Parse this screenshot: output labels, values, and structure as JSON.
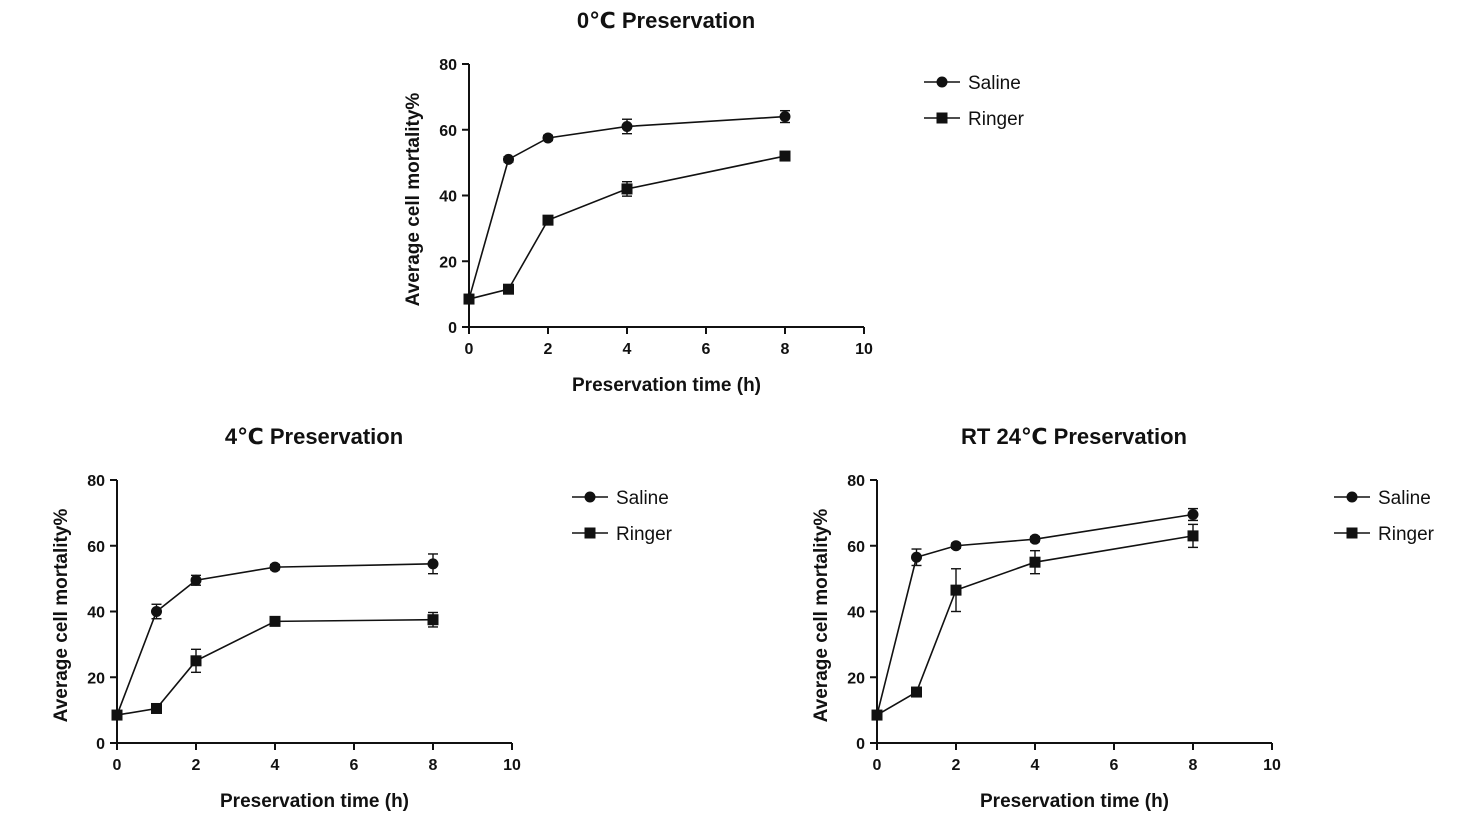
{
  "chart_data": [
    {
      "type": "line",
      "title": "0℃ Preservation",
      "xlabel": "Preservation time (h)",
      "ylabel": "Average cell mortality%",
      "xlim": [
        0,
        10
      ],
      "ylim": [
        0,
        80
      ],
      "xticks": [
        0,
        2,
        4,
        6,
        8,
        10
      ],
      "yticks": [
        0,
        20,
        40,
        60,
        80
      ],
      "legend_position": "right",
      "series": [
        {
          "name": "Saline",
          "marker": "circle",
          "x": [
            0,
            1,
            2,
            4,
            8
          ],
          "values": [
            8.5,
            51,
            57.5,
            61,
            64
          ],
          "errors": [
            0.6,
            0.8,
            0.8,
            2.2,
            1.8
          ]
        },
        {
          "name": "Ringer",
          "marker": "square",
          "x": [
            0,
            1,
            2,
            4,
            8
          ],
          "values": [
            8.5,
            11.5,
            32.5,
            42,
            52
          ],
          "errors": [
            0.6,
            0.8,
            1.0,
            2.2,
            1.0
          ]
        }
      ]
    },
    {
      "type": "line",
      "title": "4℃ Preservation",
      "xlabel": "Preservation time (h)",
      "ylabel": "Average cell mortality%",
      "xlim": [
        0,
        10
      ],
      "ylim": [
        0,
        80
      ],
      "xticks": [
        0,
        2,
        4,
        6,
        8,
        10
      ],
      "yticks": [
        0,
        20,
        40,
        60,
        80
      ],
      "legend_position": "right",
      "series": [
        {
          "name": "Saline",
          "marker": "circle",
          "x": [
            0,
            1,
            2,
            4,
            8
          ],
          "values": [
            8.5,
            40,
            49.5,
            53.5,
            54.5
          ],
          "errors": [
            0.6,
            2.2,
            1.5,
            0.8,
            3.0
          ]
        },
        {
          "name": "Ringer",
          "marker": "square",
          "x": [
            0,
            1,
            2,
            4,
            8
          ],
          "values": [
            8.5,
            10.5,
            25,
            37,
            37.5
          ],
          "errors": [
            0.6,
            0.8,
            3.5,
            0.8,
            2.2
          ]
        }
      ]
    },
    {
      "type": "line",
      "title": "RT 24℃ Preservation",
      "xlabel": "Preservation time (h)",
      "ylabel": "Average cell mortality%",
      "xlim": [
        0,
        10
      ],
      "ylim": [
        0,
        80
      ],
      "xticks": [
        0,
        2,
        4,
        6,
        8,
        10
      ],
      "yticks": [
        0,
        20,
        40,
        60,
        80
      ],
      "legend_position": "right",
      "series": [
        {
          "name": "Saline",
          "marker": "circle",
          "x": [
            0,
            1,
            2,
            4,
            8
          ],
          "values": [
            8.5,
            56.5,
            60,
            62,
            69.5
          ],
          "errors": [
            0.6,
            2.5,
            0.8,
            0.8,
            1.8
          ]
        },
        {
          "name": "Ringer",
          "marker": "square",
          "x": [
            0,
            1,
            2,
            4,
            8
          ],
          "values": [
            8.5,
            15.5,
            46.5,
            55,
            63
          ],
          "errors": [
            0.6,
            0.8,
            6.5,
            3.5,
            3.5
          ]
        }
      ]
    }
  ]
}
